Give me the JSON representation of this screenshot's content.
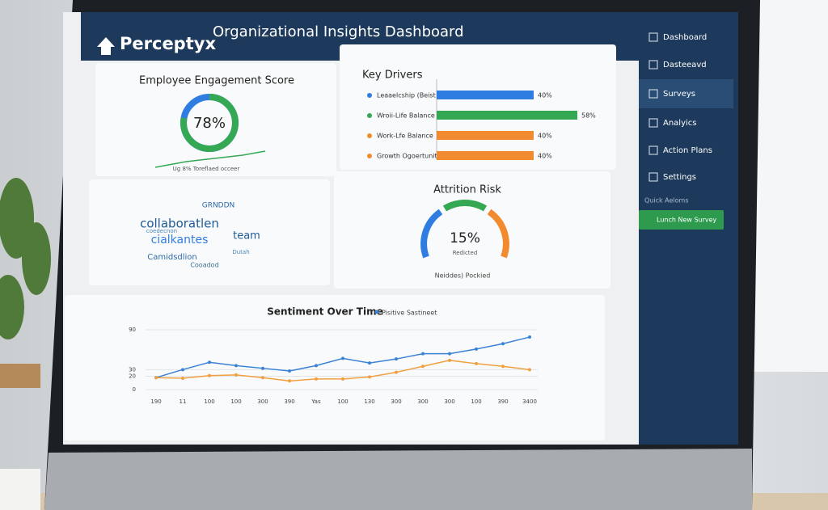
{
  "header": {
    "brand": "Perceptyx",
    "title": "Organizational Insights Dashboard"
  },
  "engagement": {
    "title": "Employee Engagement Score",
    "value": 78,
    "value_label": "78%",
    "caption": "Ug 8% Toreflaed occeer"
  },
  "key_drivers": {
    "title": "Key Drivers",
    "items": [
      {
        "label": "Leaaelcship (Beist",
        "value": 40,
        "value_label": "40%",
        "color": "#2f7de1"
      },
      {
        "label": "Wroii-Life Balance",
        "value": 58,
        "value_label": "58%",
        "color": "#34a853"
      },
      {
        "label": "Work-Lfe Balance",
        "value": 40,
        "value_label": "40%",
        "color": "#f28b30"
      },
      {
        "label": "Growth Ogoertunities",
        "value": 40,
        "value_label": "40%",
        "color": "#f28b30"
      }
    ]
  },
  "word_cloud": {
    "words": [
      "GRNDDN",
      "collaboratlen",
      "cialkantes",
      "team",
      "Camidsdlion",
      "Cooadod",
      "coedecnon",
      "Dutah"
    ]
  },
  "attrition": {
    "title": "Attrition Risk",
    "value_label": "15%",
    "caption": "Redicted",
    "footer": "Neiddes) Pockied"
  },
  "sentiment": {
    "title": "Sentiment Over Time",
    "ylim": [
      0,
      90
    ],
    "yticks": [
      0,
      20,
      30,
      90
    ],
    "categories": [
      "190",
      "11",
      "100",
      "100",
      "300",
      "390",
      "Yas",
      "100",
      "130",
      "300",
      "300",
      "300",
      "100",
      "390",
      "3400"
    ],
    "series": [
      {
        "name": "Pisitive Sastineet",
        "color": "#3b82d6",
        "values": [
          18,
          30,
          41,
          36,
          32,
          28,
          36,
          47,
          40,
          46,
          54,
          54,
          61,
          69,
          79
        ]
      },
      {
        "color": "#f0a040",
        "values": [
          18,
          17,
          21,
          22,
          18,
          13,
          16,
          16,
          19,
          26,
          35,
          44,
          39,
          35,
          30
        ]
      }
    ]
  },
  "sidebar": {
    "items": [
      "Dashboard",
      "Dasteeavd",
      "Surveys",
      "Analyics",
      "Action Plans",
      "Settings"
    ],
    "section": "Quick Aeloms",
    "button": "Lunch New Survey"
  }
}
